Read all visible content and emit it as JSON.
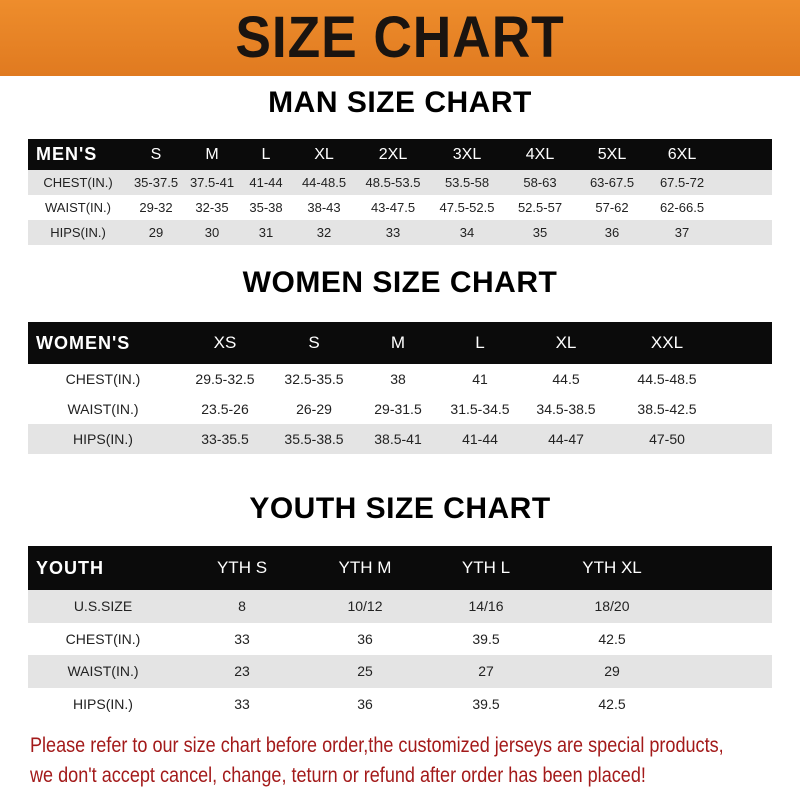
{
  "banner": {
    "title": "SIZE CHART",
    "color": "#e8852a"
  },
  "men": {
    "title": "MAN SIZE CHART",
    "header": [
      "MEN'S",
      "S",
      "M",
      "L",
      "XL",
      "2XL",
      "3XL",
      "4XL",
      "5XL",
      "6XL"
    ],
    "rows": [
      [
        "CHEST(IN.)",
        "35-37.5",
        "37.5-41",
        "41-44",
        "44-48.5",
        "48.5-53.5",
        "53.5-58",
        "58-63",
        "63-67.5",
        "67.5-72"
      ],
      [
        "WAIST(IN.)",
        "29-32",
        "32-35",
        "35-38",
        "38-43",
        "43-47.5",
        "47.5-52.5",
        "52.5-57",
        "57-62",
        "62-66.5"
      ],
      [
        "HIPS(IN.)",
        "29",
        "30",
        "31",
        "32",
        "33",
        "34",
        "35",
        "36",
        "37"
      ]
    ]
  },
  "women": {
    "title": "WOMEN SIZE CHART",
    "header": [
      "WOMEN'S",
      "XS",
      "S",
      "M",
      "L",
      "XL",
      "XXL"
    ],
    "rows": [
      [
        "CHEST(IN.)",
        "29.5-32.5",
        "32.5-35.5",
        "38",
        "41",
        "44.5",
        "44.5-48.5"
      ],
      [
        "WAIST(IN.)",
        "23.5-26",
        "26-29",
        "29-31.5",
        "31.5-34.5",
        "34.5-38.5",
        "38.5-42.5"
      ],
      [
        "HIPS(IN.)",
        "33-35.5",
        "35.5-38.5",
        "38.5-41",
        "41-44",
        "44-47",
        "47-50"
      ]
    ]
  },
  "youth": {
    "title": "YOUTH SIZE CHART",
    "header": [
      "YOUTH",
      "YTH S",
      "YTH M",
      "YTH L",
      "YTH XL"
    ],
    "rows": [
      [
        "U.S.SIZE",
        "8",
        "10/12",
        "14/16",
        "18/20"
      ],
      [
        "CHEST(IN.)",
        "33",
        "36",
        "39.5",
        "42.5"
      ],
      [
        "WAIST(IN.)",
        "23",
        "25",
        "27",
        "29"
      ],
      [
        "HIPS(IN.)",
        "33",
        "36",
        "39.5",
        "42.5"
      ]
    ]
  },
  "note": {
    "line1": "Please refer to our size chart before order,the customized jerseys are special products,",
    "line2": "we don't accept cancel, change, teturn or refund after order has been placed!",
    "color": "#a31a1a"
  }
}
